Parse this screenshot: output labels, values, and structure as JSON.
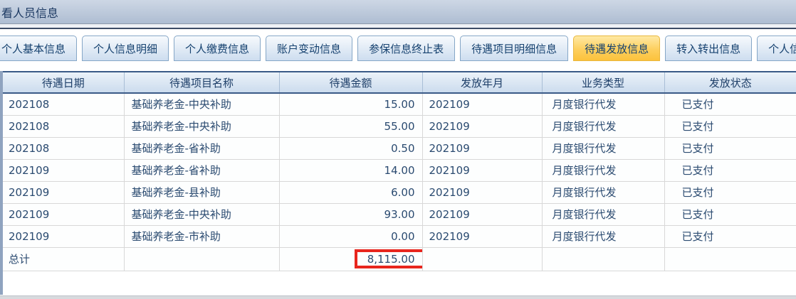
{
  "window": {
    "title": "看人员信息"
  },
  "tabs": [
    {
      "label": "个人基本信息",
      "active": false
    },
    {
      "label": "个人信息明细",
      "active": false
    },
    {
      "label": "个人缴费信息",
      "active": false
    },
    {
      "label": "账户变动信息",
      "active": false
    },
    {
      "label": "参保信息终止表",
      "active": false
    },
    {
      "label": "待遇项目明细信息",
      "active": false
    },
    {
      "label": "待遇发放信息",
      "active": true
    },
    {
      "label": "转入转出信息",
      "active": false
    },
    {
      "label": "个人信息变",
      "active": false
    }
  ],
  "table": {
    "columns": [
      "待遇日期",
      "待遇项目名称",
      "待遇金额",
      "发放年月",
      "业务类型",
      "发放状态"
    ],
    "rows": [
      [
        "202108",
        "基础养老金-中央补助",
        "15.00",
        "202109",
        "月度银行代发",
        "已支付"
      ],
      [
        "202108",
        "基础养老金-中央补助",
        "55.00",
        "202109",
        "月度银行代发",
        "已支付"
      ],
      [
        "202108",
        "基础养老金-省补助",
        "0.50",
        "202109",
        "月度银行代发",
        "已支付"
      ],
      [
        "202109",
        "基础养老金-省补助",
        "14.00",
        "202109",
        "月度银行代发",
        "已支付"
      ],
      [
        "202109",
        "基础养老金-县补助",
        "6.00",
        "202109",
        "月度银行代发",
        "已支付"
      ],
      [
        "202109",
        "基础养老金-中央补助",
        "93.00",
        "202109",
        "月度银行代发",
        "已支付"
      ],
      [
        "202109",
        "基础养老金-市补助",
        "0.00",
        "202109",
        "月度银行代发",
        "已支付"
      ]
    ],
    "total_row": {
      "label": "总计",
      "amount": "8,115.00"
    }
  },
  "colors": {
    "active_tab": "#FCC23C",
    "tab_text": "#15416F",
    "header_border": "#3A5A87",
    "highlight_box": "#E8251D"
  }
}
